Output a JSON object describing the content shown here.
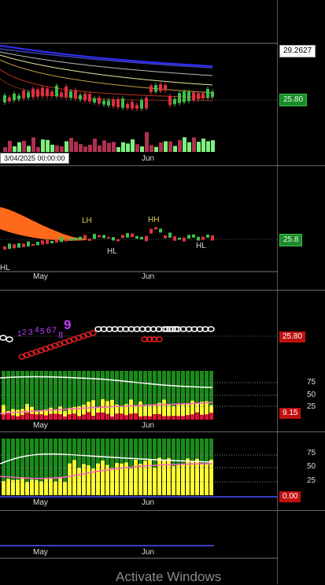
{
  "panes": {
    "price": {
      "top_value": "29.2627",
      "last_value": "25.80",
      "tooltip": "3/04/2025 00:00:00",
      "month_label": "Jun"
    },
    "pattern": {
      "last_value": "25.8",
      "annotations": [
        "LH",
        "HH",
        "HL",
        "HL",
        "HL"
      ],
      "month_labels": [
        "May",
        "Jun"
      ]
    },
    "sequential": {
      "last_value": "25.80",
      "count_labels": [
        "1",
        "2",
        "3",
        "4",
        "5",
        "6",
        "7",
        "8",
        "9"
      ]
    },
    "oscillator1": {
      "last_value": "9.15",
      "levels": [
        "75",
        "50",
        "25"
      ],
      "month_labels": [
        "May",
        "Jun"
      ]
    },
    "oscillator2": {
      "last_value": "0.00",
      "levels": [
        "75",
        "50",
        "25"
      ],
      "month_labels": [
        "May",
        "Jun"
      ]
    },
    "bottom": {
      "month_labels": [
        "May",
        "Jun"
      ]
    }
  },
  "colors": {
    "up": "#3cc24c",
    "down": "#e03040",
    "fill_orange": "#ff6a1a",
    "osc_green": "#1a8a1a",
    "osc_yellow": "#ffff33"
  },
  "watermark": "Activate Windows"
}
